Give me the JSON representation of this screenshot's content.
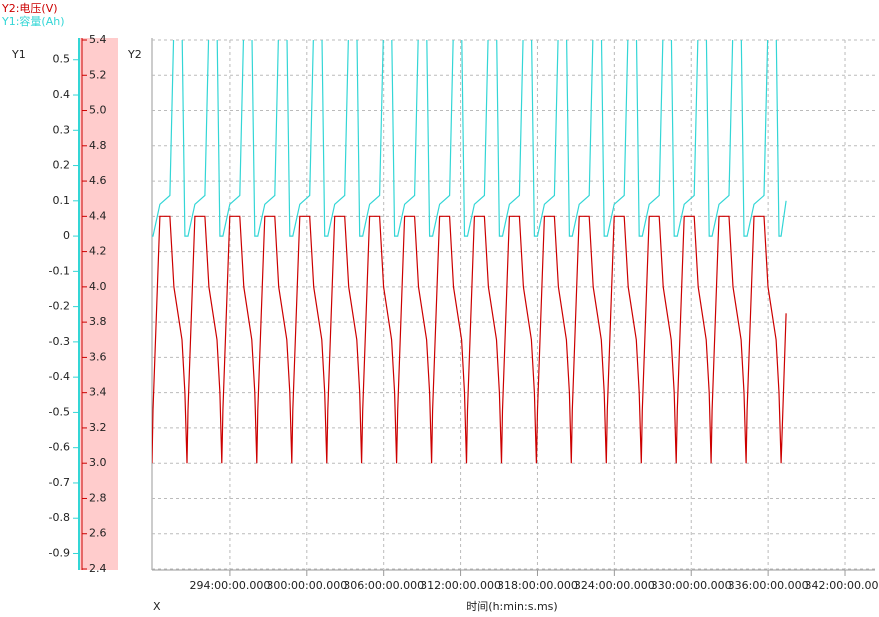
{
  "chart_data": {
    "type": "line",
    "legend": [
      "Y2:电压(V)",
      "Y1:容量(Ah)"
    ],
    "y1_label": "Y1",
    "y2_label": "Y2",
    "x_axis_name": "X",
    "xlabel": "时间(h:min:s.ms)",
    "x": [
      287.92,
      288.0,
      288.54,
      289.32,
      289.63,
      290.26,
      290.49,
      290.65,
      290.73,
      291.27,
      292.05,
      292.36,
      292.99,
      293.22,
      293.37,
      293.45,
      293.99,
      294.77,
      295.08,
      295.71,
      295.94,
      296.1,
      296.18,
      296.72,
      297.5,
      297.81,
      298.44,
      298.67,
      298.83,
      298.91,
      299.45,
      300.23,
      300.54,
      301.17,
      301.4,
      301.56,
      301.64,
      302.18,
      302.96,
      303.27,
      303.9,
      304.13,
      304.28,
      304.36,
      304.9,
      305.68,
      305.99,
      306.62,
      306.85,
      307.01,
      307.09,
      307.63,
      308.41,
      308.72,
      309.35,
      309.58,
      309.74,
      309.82,
      310.36,
      311.14,
      311.45,
      312.08,
      312.31,
      312.46,
      312.54,
      313.08,
      313.86,
      314.17,
      314.8,
      315.03,
      315.19,
      315.27,
      315.81,
      316.59,
      316.9,
      317.53,
      317.76,
      317.92,
      318.0,
      318.54,
      319.32,
      319.63,
      320.26,
      320.49,
      320.64,
      320.72,
      321.26,
      322.04,
      322.35,
      322.98,
      323.21,
      323.37,
      323.45,
      323.99,
      324.77,
      325.08,
      325.71,
      325.94,
      326.1,
      326.18,
      326.72,
      327.5,
      327.81,
      328.44,
      328.67,
      328.83,
      328.91,
      329.45,
      330.23,
      330.54,
      331.17,
      331.4,
      331.55,
      331.63,
      332.17,
      332.95,
      333.26,
      333.89,
      334.12,
      334.28,
      334.36,
      334.9,
      335.68,
      335.99,
      336.62,
      336.85,
      337.01,
      337.4
    ],
    "series": [
      {
        "name": "电压",
        "color": "#cc0000",
        "axis": "y2",
        "values": [
          3.0,
          3.3,
          4.4,
          4.4,
          4.0,
          3.7,
          3.4,
          3.0,
          3.3,
          4.4,
          4.4,
          4.0,
          3.7,
          3.4,
          3.0,
          3.3,
          4.4,
          4.4,
          4.0,
          3.7,
          3.4,
          3.0,
          3.3,
          4.4,
          4.4,
          4.0,
          3.7,
          3.4,
          3.0,
          3.3,
          4.4,
          4.4,
          4.0,
          3.7,
          3.4,
          3.0,
          3.3,
          4.4,
          4.4,
          4.0,
          3.7,
          3.4,
          3.0,
          3.3,
          4.4,
          4.4,
          4.0,
          3.7,
          3.4,
          3.0,
          3.3,
          4.4,
          4.4,
          4.0,
          3.7,
          3.4,
          3.0,
          3.3,
          4.4,
          4.4,
          4.0,
          3.7,
          3.4,
          3.0,
          3.3,
          4.4,
          4.4,
          4.0,
          3.7,
          3.4,
          3.0,
          3.3,
          4.4,
          4.4,
          4.0,
          3.7,
          3.4,
          3.0,
          3.3,
          4.4,
          4.4,
          4.0,
          3.7,
          3.4,
          3.0,
          3.3,
          4.4,
          4.4,
          4.0,
          3.7,
          3.4,
          3.0,
          3.3,
          4.4,
          4.4,
          4.0,
          3.7,
          3.4,
          3.0,
          3.3,
          4.4,
          4.4,
          4.0,
          3.7,
          3.4,
          3.0,
          3.3,
          4.4,
          4.4,
          4.0,
          3.7,
          3.4,
          3.0,
          3.3,
          4.4,
          4.4,
          4.0,
          3.7,
          3.4,
          3.0,
          3.3,
          4.4,
          4.4,
          4.0,
          3.7,
          3.4,
          3.0,
          3.85
        ]
      },
      {
        "name": "容量",
        "color": "#33d6d6",
        "axis": "y1",
        "values": [
          0,
          0,
          0.09,
          0.115,
          0.6,
          0.6,
          0,
          0,
          0,
          0.09,
          0.115,
          0.6,
          0.6,
          0,
          0,
          0,
          0.09,
          0.115,
          0.6,
          0.6,
          0,
          0,
          0,
          0.09,
          0.115,
          0.6,
          0.6,
          0,
          0,
          0,
          0.09,
          0.115,
          0.6,
          0.6,
          0,
          0,
          0,
          0.09,
          0.115,
          0.6,
          0.6,
          0,
          0,
          0,
          0.09,
          0.115,
          0.6,
          0.6,
          0,
          0,
          0,
          0.09,
          0.115,
          0.6,
          0.6,
          0,
          0,
          0,
          0.09,
          0.115,
          0.6,
          0.6,
          0,
          0,
          0,
          0.09,
          0.115,
          0.6,
          0.6,
          0,
          0,
          0,
          0.09,
          0.115,
          0.6,
          0.6,
          0,
          0,
          0,
          0.09,
          0.115,
          0.6,
          0.6,
          0,
          0,
          0,
          0.09,
          0.115,
          0.6,
          0.6,
          0,
          0,
          0,
          0.09,
          0.115,
          0.6,
          0.6,
          0,
          0,
          0,
          0.09,
          0.115,
          0.6,
          0.6,
          0,
          0,
          0,
          0.09,
          0.115,
          0.6,
          0.6,
          0,
          0,
          0,
          0.09,
          0.115,
          0.6,
          0.6,
          0,
          0,
          0,
          0.09,
          0.115,
          0.6,
          0.6,
          0,
          0,
          0.1
        ]
      }
    ],
    "xlim": [
      287.92,
      344.34
    ],
    "xticks": [
      {
        "value": 294,
        "label": "294:00:00.000"
      },
      {
        "value": 300,
        "label": "300:00:00.000"
      },
      {
        "value": 306,
        "label": "306:00:00.000"
      },
      {
        "value": 312,
        "label": "312:00:00.000"
      },
      {
        "value": 318,
        "label": "318:00:00.000"
      },
      {
        "value": 324,
        "label": "324:00:00.000"
      },
      {
        "value": 330,
        "label": "330:00:00.000"
      },
      {
        "value": 336,
        "label": "336:00:00.000"
      },
      {
        "value": 342,
        "label": "342:00:00.000"
      }
    ],
    "ylim": [
      -0.944,
      0.556
    ],
    "yticks": [
      0.5,
      0.4,
      0.3,
      0.2,
      0.1,
      0,
      -0.1,
      -0.2,
      -0.3,
      -0.4,
      -0.5,
      -0.6,
      -0.7,
      -0.8,
      -0.9
    ],
    "y2lim": [
      2.4,
      5.4
    ],
    "y2ticks": [
      5.4,
      5.2,
      {
        "value": 5,
        "label": "5.0"
      },
      4.8,
      4.6,
      4.4,
      4.2,
      {
        "value": 4,
        "label": "4.0"
      },
      3.8,
      3.6,
      3.4,
      3.2,
      {
        "value": 3,
        "label": "3.0"
      },
      2.8,
      2.6,
      2.4
    ],
    "grid": true
  }
}
